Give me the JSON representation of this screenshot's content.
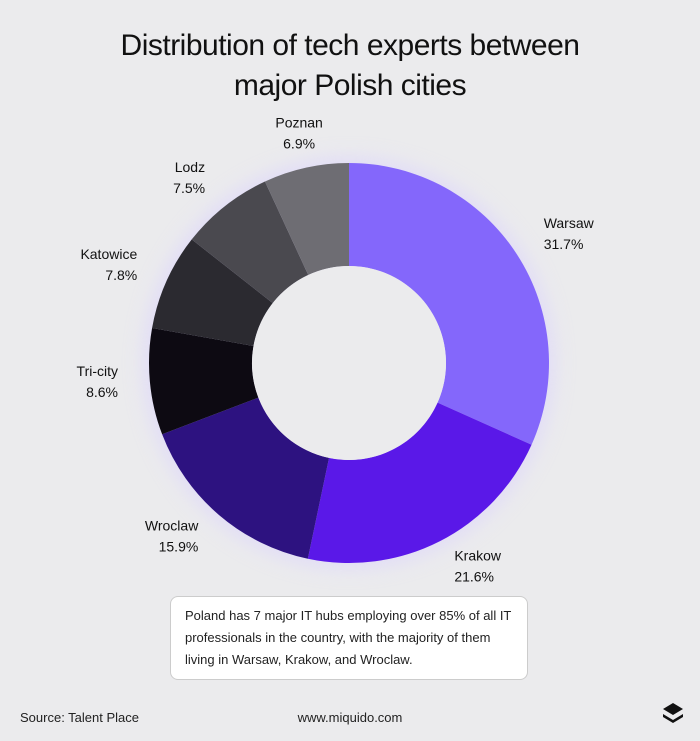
{
  "chart_data": {
    "type": "donut",
    "title": "Distribution of tech experts between major Polish cities",
    "categories": [
      "Warsaw",
      "Krakow",
      "Wroclaw",
      "Tri-city",
      "Katowice",
      "Lodz",
      "Poznan"
    ],
    "values": [
      31.7,
      21.6,
      15.9,
      8.6,
      7.8,
      7.5,
      6.9
    ],
    "value_labels": [
      "31.7%",
      "21.6%",
      "15.9%",
      "8.6%",
      "7.8%",
      "7.5%",
      "6.9%"
    ],
    "colors": [
      "#8467fb",
      "#5a18e8",
      "#2d1280",
      "#0d0a12",
      "#2b2a30",
      "#4a494f",
      "#6e6d73"
    ],
    "note": "Poland has 7 major IT hubs employing over 85% of all IT professionals in the country, with the majority of them living in Warsaw, Krakow, and Wroclaw.",
    "source": "Source: Talent Place",
    "website": "www.miquido.com"
  }
}
